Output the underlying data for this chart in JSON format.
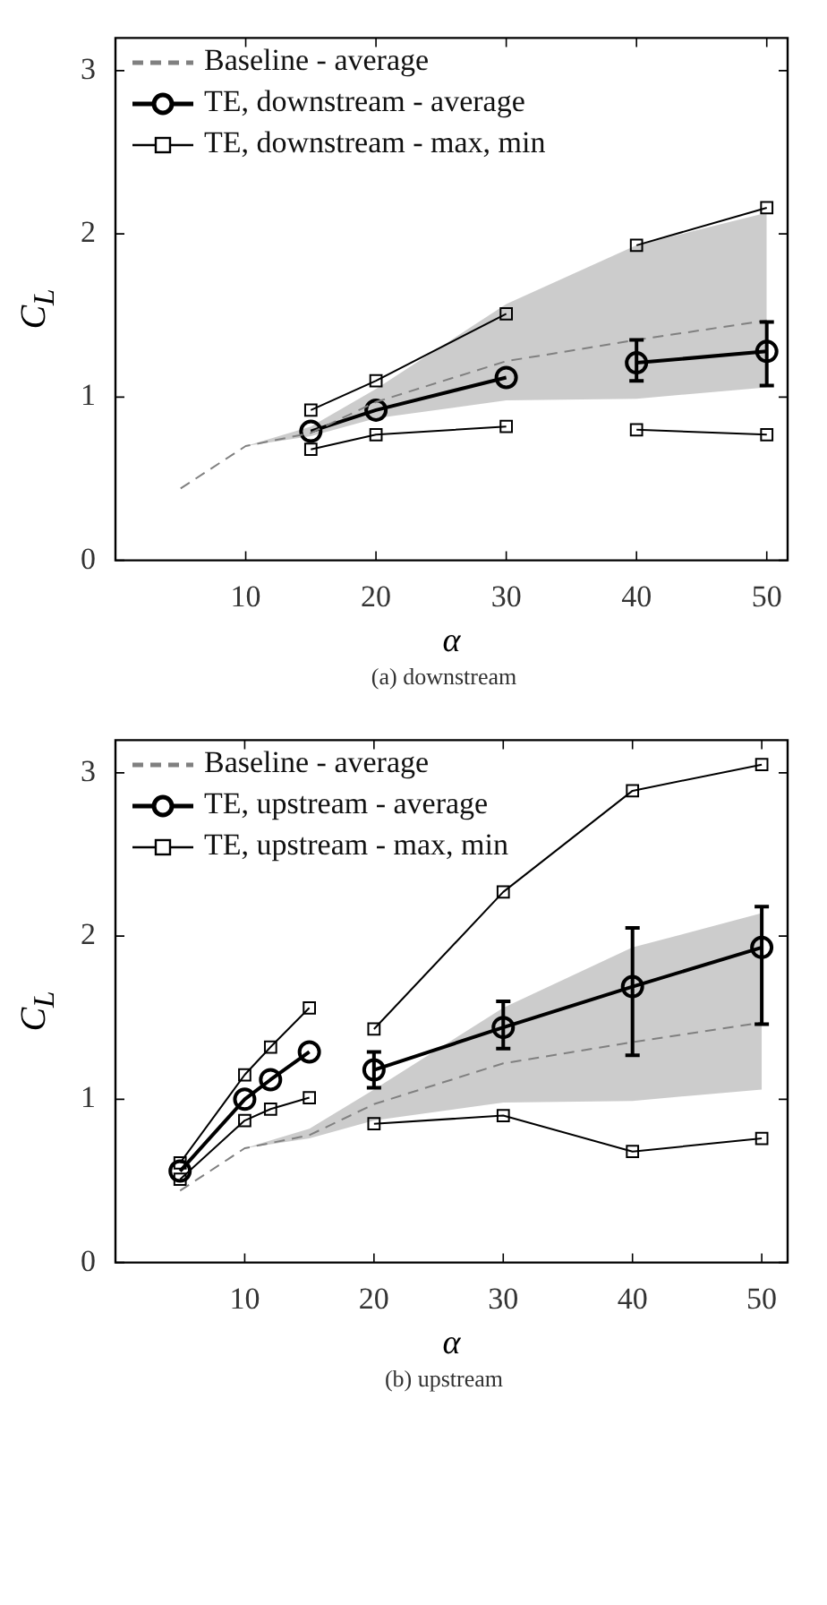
{
  "chart_data": [
    {
      "type": "line",
      "xlabel": "α",
      "ylabel": "C$_{L}$",
      "annotations": [
        "(a) downstream"
      ],
      "xlim": [
        0,
        51.6
      ],
      "ylim": [
        0,
        3.2
      ],
      "xticks": [
        10,
        20,
        30,
        40,
        50
      ],
      "yticks": [
        0,
        1,
        2,
        3
      ],
      "grid": false,
      "legend": "top left",
      "series": [
        {
          "name": "Baseline - average",
          "color": "#808080",
          "line_style": "dashed",
          "marker": "none",
          "x": [
            5,
            10,
            15,
            20,
            30,
            40,
            50
          ],
          "values": [
            0.44,
            0.7,
            0.78,
            0.97,
            1.22,
            1.35,
            1.47
          ],
          "lower": [
            null,
            0.7,
            0.76,
            0.87,
            0.98,
            0.99,
            1.06
          ],
          "upper": [
            null,
            0.7,
            0.82,
            1.05,
            1.57,
            1.93,
            2.13
          ]
        },
        {
          "name": "TE, downstream - average",
          "color": "#000000",
          "line_style": "solid",
          "marker": "circle",
          "x": [
            15,
            20,
            30
          ],
          "values": [
            0.79,
            0.92,
            1.12
          ]
        },
        {
          "color": "#000000",
          "line_style": "solid",
          "marker": "circle",
          "x": [
            40,
            50
          ],
          "values": [
            1.21,
            1.28
          ],
          "errors": [
            [
              1.1,
              1.35
            ],
            [
              1.07,
              1.46
            ]
          ]
        },
        {
          "name": "TE, downstream - max, min",
          "color": "#000000",
          "line_style": "solid",
          "marker": "square",
          "x": [
            15,
            20,
            30
          ],
          "values": [
            0.92,
            1.1,
            1.51
          ]
        },
        {
          "color": "#000000",
          "line_style": "solid",
          "marker": "square",
          "x": [
            40,
            50
          ],
          "values": [
            1.93,
            2.16
          ]
        },
        {
          "color": "#000000",
          "line_style": "solid",
          "marker": "square",
          "x": [
            15,
            20,
            30
          ],
          "values": [
            0.68,
            0.77,
            0.82
          ]
        },
        {
          "color": "#000000",
          "line_style": "solid",
          "marker": "square",
          "x": [
            40,
            50
          ],
          "values": [
            0.8,
            0.77
          ]
        }
      ]
    },
    {
      "type": "line",
      "xlabel": "α",
      "ylabel": "C$_{L}$",
      "annotations": [
        "(b) upstream"
      ],
      "xlim": [
        0,
        52
      ],
      "ylim": [
        0,
        3.2
      ],
      "xticks": [
        10,
        20,
        30,
        40,
        50
      ],
      "yticks": [
        0,
        1,
        2,
        3
      ],
      "grid": false,
      "legend": "top left",
      "series": [
        {
          "name": "Baseline - average",
          "color": "#808080",
          "line_style": "dashed",
          "marker": "none",
          "x": [
            5,
            10,
            15,
            20,
            30,
            40,
            50
          ],
          "values": [
            0.44,
            0.7,
            0.78,
            0.97,
            1.22,
            1.35,
            1.47
          ],
          "lower": [
            null,
            0.7,
            0.76,
            0.87,
            0.98,
            0.99,
            1.06
          ],
          "upper": [
            null,
            0.7,
            0.82,
            1.06,
            1.56,
            1.93,
            2.14
          ]
        },
        {
          "name": "TE, upstream - average",
          "color": "#000000",
          "line_style": "solid",
          "marker": "circle",
          "x": [
            5,
            10,
            12,
            15
          ],
          "values": [
            0.56,
            1.0,
            1.12,
            1.29
          ]
        },
        {
          "color": "#000000",
          "line_style": "solid",
          "marker": "circle",
          "x": [
            20,
            30,
            40,
            50
          ],
          "values": [
            1.18,
            1.44,
            1.69,
            1.93
          ],
          "errors": [
            [
              1.07,
              1.29
            ],
            [
              1.31,
              1.6
            ],
            [
              1.27,
              2.05
            ],
            [
              1.46,
              2.18
            ]
          ]
        },
        {
          "name": "TE, upstream - max, min",
          "color": "#000000",
          "line_style": "solid",
          "marker": "square",
          "x": [
            5,
            10,
            12,
            15
          ],
          "values": [
            0.61,
            1.15,
            1.32,
            1.56
          ]
        },
        {
          "color": "#000000",
          "line_style": "solid",
          "marker": "square",
          "x": [
            20,
            30,
            40,
            50
          ],
          "values": [
            1.43,
            2.27,
            2.89,
            3.05
          ]
        },
        {
          "color": "#000000",
          "line_style": "solid",
          "marker": "square",
          "x": [
            5,
            10,
            12,
            15
          ],
          "values": [
            0.51,
            0.87,
            0.94,
            1.01
          ]
        },
        {
          "color": "#000000",
          "line_style": "solid",
          "marker": "square",
          "x": [
            20,
            30,
            40,
            50
          ],
          "values": [
            0.85,
            0.9,
            0.68,
            0.76
          ]
        }
      ]
    }
  ]
}
